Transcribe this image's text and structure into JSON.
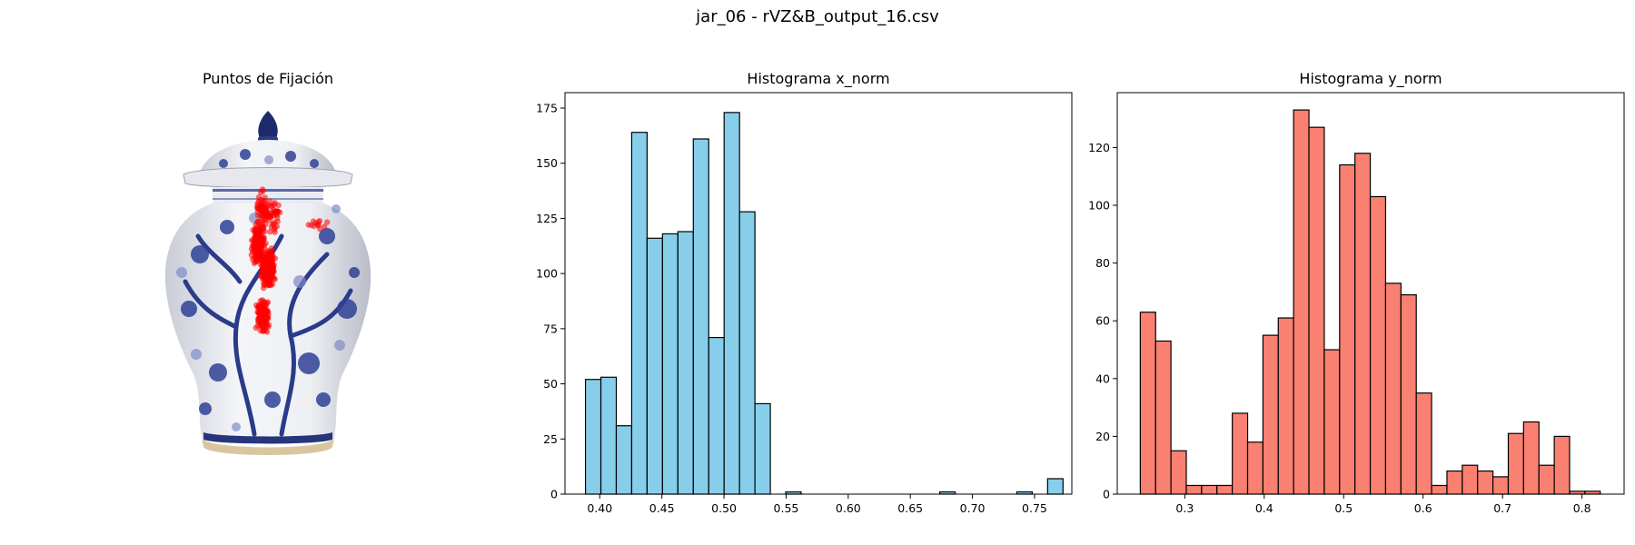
{
  "figure": {
    "title": "jar_06 - rVZ&B_output_16.csv"
  },
  "panels": [
    {
      "title": "Puntos de Fijación",
      "kind": "image-with-fixations",
      "image_subject": "blue-and-white porcelain ginger jar with lid"
    }
  ],
  "chart_data": [
    {
      "type": "scatter",
      "title": "Puntos de Fijación",
      "marker_color": "#ff0000",
      "note_visible": "fixation points overlaid on image, no axes",
      "fixation_clusters": [
        {
          "x": 0.46,
          "y": 0.37,
          "count": 220
        },
        {
          "x": 0.5,
          "y": 0.43,
          "count": 260
        },
        {
          "x": 0.48,
          "y": 0.55,
          "count": 120
        },
        {
          "x": 0.48,
          "y": 0.28,
          "count": 60
        },
        {
          "x": 0.52,
          "y": 0.3,
          "count": 40
        },
        {
          "x": 0.7,
          "y": 0.32,
          "count": 12
        }
      ]
    },
    {
      "type": "bar",
      "title": "Histograma x_norm",
      "bar_color": "#87ceeb",
      "edge_color": "#000000",
      "bin_edges_start": 0.3885,
      "bin_width": 0.0124,
      "values": [
        52,
        53,
        31,
        164,
        116,
        118,
        119,
        161,
        71,
        173,
        128,
        41,
        0,
        1,
        0,
        0,
        0,
        0,
        0,
        0,
        0,
        0,
        0,
        1,
        0,
        0,
        0,
        0,
        1,
        0,
        7
      ],
      "xlim": [
        0.372,
        0.78
      ],
      "ylim": [
        0,
        182
      ],
      "xticks": [
        0.4,
        0.45,
        0.5,
        0.55,
        0.6,
        0.65,
        0.7,
        0.75
      ],
      "xtick_labels": [
        "0.40",
        "0.45",
        "0.50",
        "0.55",
        "0.60",
        "0.65",
        "0.70",
        "0.75"
      ],
      "yticks": [
        0,
        25,
        50,
        75,
        100,
        125,
        150,
        175
      ],
      "ytick_labels": [
        "0",
        "25",
        "50",
        "75",
        "100",
        "125",
        "150",
        "175"
      ],
      "grid": false
    },
    {
      "type": "bar",
      "title": "Histograma y_norm",
      "bar_color": "#fa8072",
      "edge_color": "#000000",
      "bin_edges_start": 0.244,
      "bin_width": 0.0193,
      "values": [
        63,
        53,
        15,
        3,
        3,
        3,
        28,
        18,
        55,
        61,
        133,
        127,
        50,
        114,
        118,
        103,
        73,
        69,
        35,
        3,
        8,
        10,
        8,
        6,
        21,
        25,
        10,
        20,
        1,
        1
      ],
      "xlim": [
        0.215,
        0.853
      ],
      "ylim": [
        0,
        139
      ],
      "xticks": [
        0.3,
        0.4,
        0.5,
        0.6,
        0.7,
        0.8
      ],
      "xtick_labels": [
        "0.3",
        "0.4",
        "0.5",
        "0.6",
        "0.7",
        "0.8"
      ],
      "yticks": [
        0,
        20,
        40,
        60,
        80,
        100,
        120
      ],
      "ytick_labels": [
        "0",
        "20",
        "40",
        "60",
        "80",
        "100",
        "120"
      ],
      "grid": false
    }
  ]
}
